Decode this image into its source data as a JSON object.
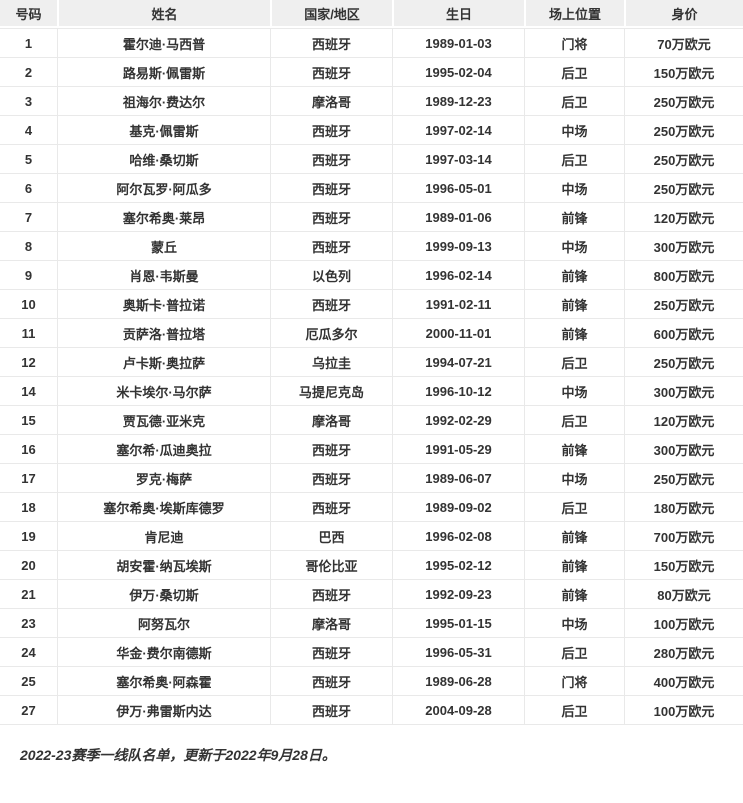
{
  "table": {
    "headers": [
      "号码",
      "姓名",
      "国家/地区",
      "生日",
      "场上位置",
      "身价"
    ],
    "column_keys": [
      "number",
      "name",
      "country",
      "birthday",
      "position",
      "value"
    ],
    "rows": [
      [
        "1",
        "霍尔迪·马西普",
        "西班牙",
        "1989-01-03",
        "门将",
        "70万欧元"
      ],
      [
        "2",
        "路易斯·佩雷斯",
        "西班牙",
        "1995-02-04",
        "后卫",
        "150万欧元"
      ],
      [
        "3",
        "祖海尔·费达尔",
        "摩洛哥",
        "1989-12-23",
        "后卫",
        "250万欧元"
      ],
      [
        "4",
        "基克·佩雷斯",
        "西班牙",
        "1997-02-14",
        "中场",
        "250万欧元"
      ],
      [
        "5",
        "哈维·桑切斯",
        "西班牙",
        "1997-03-14",
        "后卫",
        "250万欧元"
      ],
      [
        "6",
        "阿尔瓦罗·阿瓜多",
        "西班牙",
        "1996-05-01",
        "中场",
        "250万欧元"
      ],
      [
        "7",
        "塞尔希奥·莱昂",
        "西班牙",
        "1989-01-06",
        "前锋",
        "120万欧元"
      ],
      [
        "8",
        "蒙丘",
        "西班牙",
        "1999-09-13",
        "中场",
        "300万欧元"
      ],
      [
        "9",
        "肖恩·韦斯曼",
        "以色列",
        "1996-02-14",
        "前锋",
        "800万欧元"
      ],
      [
        "10",
        "奥斯卡·普拉诺",
        "西班牙",
        "1991-02-11",
        "前锋",
        "250万欧元"
      ],
      [
        "11",
        "贡萨洛·普拉塔",
        "厄瓜多尔",
        "2000-11-01",
        "前锋",
        "600万欧元"
      ],
      [
        "12",
        "卢卡斯·奥拉萨",
        "乌拉圭",
        "1994-07-21",
        "后卫",
        "250万欧元"
      ],
      [
        "14",
        "米卡埃尔·马尔萨",
        "马提尼克岛",
        "1996-10-12",
        "中场",
        "300万欧元"
      ],
      [
        "15",
        "贾瓦德·亚米克",
        "摩洛哥",
        "1992-02-29",
        "后卫",
        "120万欧元"
      ],
      [
        "16",
        "塞尔希·瓜迪奥拉",
        "西班牙",
        "1991-05-29",
        "前锋",
        "300万欧元"
      ],
      [
        "17",
        "罗克·梅萨",
        "西班牙",
        "1989-06-07",
        "中场",
        "250万欧元"
      ],
      [
        "18",
        "塞尔希奥·埃斯库德罗",
        "西班牙",
        "1989-09-02",
        "后卫",
        "180万欧元"
      ],
      [
        "19",
        "肯尼迪",
        "巴西",
        "1996-02-08",
        "前锋",
        "700万欧元"
      ],
      [
        "20",
        "胡安霍·纳瓦埃斯",
        "哥伦比亚",
        "1995-02-12",
        "前锋",
        "150万欧元"
      ],
      [
        "21",
        "伊万·桑切斯",
        "西班牙",
        "1992-09-23",
        "前锋",
        "80万欧元"
      ],
      [
        "23",
        "阿努瓦尔",
        "摩洛哥",
        "1995-01-15",
        "中场",
        "100万欧元"
      ],
      [
        "24",
        "华金·费尔南德斯",
        "西班牙",
        "1996-05-31",
        "后卫",
        "280万欧元"
      ],
      [
        "25",
        "塞尔希奥·阿森霍",
        "西班牙",
        "1989-06-28",
        "门将",
        "400万欧元"
      ],
      [
        "27",
        "伊万·弗雷斯内达",
        "西班牙",
        "2004-09-28",
        "后卫",
        "100万欧元"
      ]
    ]
  },
  "footer": {
    "note": "2022-23赛季一线队名单，更新于2022年9月28日。"
  },
  "colors": {
    "header_bg": "#efefef",
    "border": "#e9e9e9",
    "text": "#333333",
    "page_bg": "#ffffff"
  }
}
